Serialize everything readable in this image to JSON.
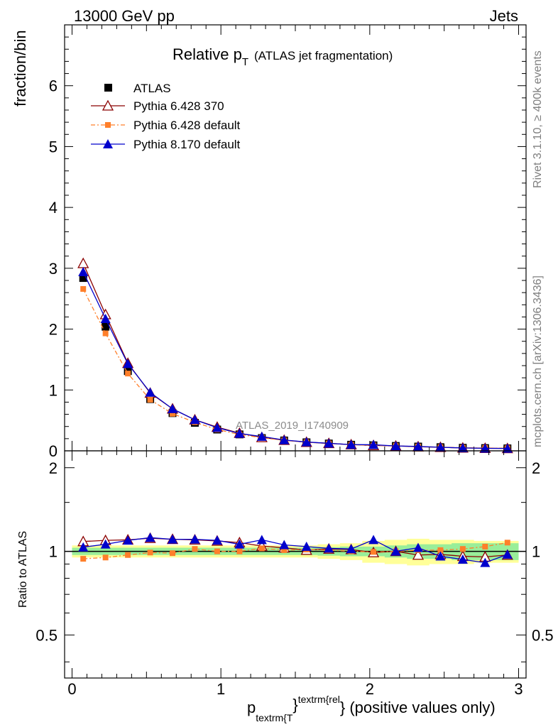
{
  "header": {
    "energy_label": "13000 GeV pp",
    "category_label": "Jets"
  },
  "side_labels": {
    "rivet": "Rivet 3.1.10, ≥ 400k events",
    "mcplots": "mcplots.cern.ch [arXiv:1306.3436]"
  },
  "watermark": "ATLAS_2019_I1740909",
  "chart_data": [
    {
      "type": "line",
      "title": {
        "main": "Relative p",
        "sub": "T",
        "suffix": "(ATLAS jet fragmentation)"
      },
      "ylabel": "fraction/bin",
      "xlim": [
        -0.05,
        3.05
      ],
      "ylim": [
        0,
        7
      ],
      "y_ticks": [
        "0",
        "1",
        "2",
        "3",
        "4",
        "5",
        "6"
      ],
      "x": [
        0.075,
        0.225,
        0.375,
        0.525,
        0.675,
        0.825,
        0.975,
        1.125,
        1.275,
        1.425,
        1.575,
        1.725,
        1.875,
        2.025,
        2.175,
        2.325,
        2.475,
        2.625,
        2.775,
        2.925
      ],
      "legend": {
        "position": "top-left",
        "entries": [
          "ATLAS",
          "Pythia 6.428 370",
          "Pythia 6.428 default",
          "Pythia 8.170 default"
        ]
      },
      "series": [
        {
          "name": "ATLAS",
          "color": "#000000",
          "marker": "square",
          "values": [
            2.84,
            2.04,
            1.31,
            0.85,
            0.62,
            0.46,
            0.35,
            0.27,
            0.21,
            0.17,
            0.14,
            0.12,
            0.1,
            0.09,
            0.08,
            0.07,
            0.06,
            0.05,
            0.045,
            0.04
          ]
        },
        {
          "name": "Pythia 6.428 370",
          "color": "#8b0000",
          "marker": "triangle-open",
          "values": [
            3.08,
            2.24,
            1.44,
            0.95,
            0.69,
            0.51,
            0.39,
            0.29,
            0.22,
            0.175,
            0.142,
            0.123,
            0.102,
            0.089,
            0.08,
            0.068,
            0.058,
            0.048,
            0.043,
            0.039
          ]
        },
        {
          "name": "Pythia 6.428 default",
          "color": "#ff7f2a",
          "marker": "square-small",
          "values": [
            2.66,
            1.93,
            1.27,
            0.84,
            0.61,
            0.47,
            0.35,
            0.27,
            0.215,
            0.172,
            0.142,
            0.121,
            0.1,
            0.09,
            0.08,
            0.071,
            0.06,
            0.051,
            0.047,
            0.043
          ]
        },
        {
          "name": "Pythia 8.170 default",
          "color": "#0000cc",
          "marker": "triangle",
          "values": [
            2.94,
            2.17,
            1.43,
            0.96,
            0.69,
            0.51,
            0.38,
            0.285,
            0.235,
            0.178,
            0.145,
            0.123,
            0.102,
            0.1,
            0.08,
            0.072,
            0.058,
            0.048,
            0.041,
            0.039
          ]
        }
      ]
    },
    {
      "type": "line",
      "ylabel": "Ratio to ATLAS",
      "xlabel": {
        "main": "p",
        "sub": "textrm{T",
        "close": "}",
        "sup": "textrm{rel",
        "tail": "} (positive values only)"
      },
      "xlim": [
        -0.05,
        3.05
      ],
      "ylim": [
        0.35,
        2.3
      ],
      "y_scale": "log",
      "y_ticks": [
        "0.5",
        "1",
        "2"
      ],
      "x_ticks": [
        "0",
        "1",
        "2",
        "3"
      ],
      "x": [
        0.075,
        0.225,
        0.375,
        0.525,
        0.675,
        0.825,
        0.975,
        1.125,
        1.275,
        1.425,
        1.575,
        1.725,
        1.875,
        2.025,
        2.175,
        2.325,
        2.475,
        2.625,
        2.775,
        2.925
      ],
      "reference_line": 1.0,
      "band_inner": [
        0.03,
        0.03,
        0.03,
        0.03,
        0.03,
        0.03,
        0.03,
        0.03,
        0.03,
        0.03,
        0.03,
        0.035,
        0.04,
        0.04,
        0.05,
        0.06,
        0.06,
        0.07,
        0.07,
        0.07
      ],
      "band_outer": [
        0.05,
        0.05,
        0.05,
        0.05,
        0.05,
        0.05,
        0.05,
        0.05,
        0.05,
        0.05,
        0.05,
        0.06,
        0.07,
        0.09,
        0.1,
        0.11,
        0.1,
        0.1,
        0.09,
        0.09
      ],
      "series": [
        {
          "name": "Pythia 6.428 370",
          "color": "#8b0000",
          "marker": "triangle-open",
          "values": [
            1.085,
            1.095,
            1.1,
            1.115,
            1.105,
            1.1,
            1.09,
            1.075,
            1.045,
            1.03,
            1.01,
            1.02,
            1.015,
            0.99,
            1.0,
            0.97,
            0.975,
            0.96,
            0.955,
            0.97
          ]
        },
        {
          "name": "Pythia 6.428 default",
          "color": "#ff7f2a",
          "marker": "square-small",
          "values": [
            0.94,
            0.95,
            0.97,
            0.99,
            0.985,
            1.02,
            1.0,
            1.0,
            1.025,
            1.01,
            1.015,
            1.01,
            1.0,
            0.995,
            1.0,
            1.01,
            1.01,
            1.02,
            1.04,
            1.075
          ]
        },
        {
          "name": "Pythia 8.170 default",
          "color": "#0000cc",
          "marker": "triangle",
          "values": [
            1.035,
            1.06,
            1.095,
            1.12,
            1.105,
            1.105,
            1.095,
            1.06,
            1.1,
            1.055,
            1.04,
            1.025,
            1.02,
            1.1,
            1.0,
            1.03,
            0.96,
            0.935,
            0.91,
            0.975
          ]
        }
      ]
    }
  ]
}
